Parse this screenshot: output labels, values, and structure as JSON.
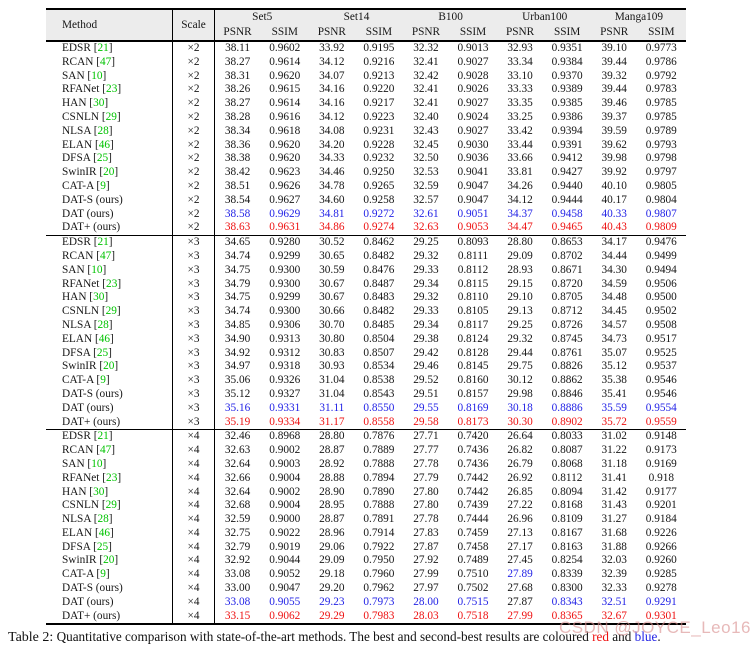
{
  "table": {
    "colors": {
      "best": "#ee1111",
      "second_best": "#2323e6",
      "citation": "#00c300",
      "header_bg": "#ececec",
      "watermark": "#d98f8f"
    },
    "columns": {
      "method": "Method",
      "scale": "Scale",
      "groups": [
        "Set5",
        "Set14",
        "B100",
        "Urban100",
        "Manga109"
      ],
      "metrics": [
        "PSNR",
        "SSIM"
      ]
    },
    "sections": [
      {
        "scale": "×2",
        "rows": [
          {
            "name": "EDSR",
            "cite": "21",
            "values": [
              "38.11",
              "0.9602",
              "33.92",
              "0.9195",
              "32.32",
              "0.9013",
              "32.93",
              "0.9351",
              "39.10",
              "0.9773"
            ]
          },
          {
            "name": "RCAN",
            "cite": "47",
            "values": [
              "38.27",
              "0.9614",
              "34.12",
              "0.9216",
              "32.41",
              "0.9027",
              "33.34",
              "0.9384",
              "39.44",
              "0.9786"
            ]
          },
          {
            "name": "SAN",
            "cite": "10",
            "values": [
              "38.31",
              "0.9620",
              "34.07",
              "0.9213",
              "32.42",
              "0.9028",
              "33.10",
              "0.9370",
              "39.32",
              "0.9792"
            ]
          },
          {
            "name": "RFANet",
            "cite": "23",
            "values": [
              "38.26",
              "0.9615",
              "34.16",
              "0.9220",
              "32.41",
              "0.9026",
              "33.33",
              "0.9389",
              "39.44",
              "0.9783"
            ]
          },
          {
            "name": "HAN",
            "cite": "30",
            "values": [
              "38.27",
              "0.9614",
              "34.16",
              "0.9217",
              "32.41",
              "0.9027",
              "33.35",
              "0.9385",
              "39.46",
              "0.9785"
            ]
          },
          {
            "name": "CSNLN",
            "cite": "29",
            "values": [
              "38.28",
              "0.9616",
              "34.12",
              "0.9223",
              "32.40",
              "0.9024",
              "33.25",
              "0.9386",
              "39.37",
              "0.9785"
            ]
          },
          {
            "name": "NLSA",
            "cite": "28",
            "values": [
              "38.34",
              "0.9618",
              "34.08",
              "0.9231",
              "32.43",
              "0.9027",
              "33.42",
              "0.9394",
              "39.59",
              "0.9789"
            ]
          },
          {
            "name": "ELAN",
            "cite": "46",
            "values": [
              "38.36",
              "0.9620",
              "34.20",
              "0.9228",
              "32.45",
              "0.9030",
              "33.44",
              "0.9391",
              "39.62",
              "0.9793"
            ]
          },
          {
            "name": "DFSA",
            "cite": "25",
            "values": [
              "38.38",
              "0.9620",
              "34.33",
              "0.9232",
              "32.50",
              "0.9036",
              "33.66",
              "0.9412",
              "39.98",
              "0.9798"
            ]
          },
          {
            "name": "SwinIR",
            "cite": "20",
            "values": [
              "38.42",
              "0.9623",
              "34.46",
              "0.9250",
              "32.53",
              "0.9041",
              "33.81",
              "0.9427",
              "39.92",
              "0.9797"
            ]
          },
          {
            "name": "CAT-A",
            "cite": "9",
            "values": [
              "38.51",
              "0.9626",
              "34.78",
              "0.9265",
              "32.59",
              "0.9047",
              "34.26",
              "0.9440",
              "40.10",
              "0.9805"
            ]
          },
          {
            "name": "DAT-S (ours)",
            "cite": null,
            "values": [
              "38.54",
              "0.9627",
              "34.60",
              "0.9258",
              "32.57",
              "0.9047",
              "34.12",
              "0.9444",
              "40.17",
              "0.9804"
            ]
          },
          {
            "name": "DAT (ours)",
            "cite": null,
            "c": "b",
            "values": [
              "38.58",
              "0.9629",
              "34.81",
              "0.9272",
              "32.61",
              "0.9051",
              "34.37",
              "0.9458",
              "40.33",
              "0.9807"
            ]
          },
          {
            "name": "DAT+ (ours)",
            "cite": null,
            "c": "r",
            "values": [
              "38.63",
              "0.9631",
              "34.86",
              "0.9274",
              "32.63",
              "0.9053",
              "34.47",
              "0.9465",
              "40.43",
              "0.9809"
            ]
          }
        ]
      },
      {
        "scale": "×3",
        "rows": [
          {
            "name": "EDSR",
            "cite": "21",
            "values": [
              "34.65",
              "0.9280",
              "30.52",
              "0.8462",
              "29.25",
              "0.8093",
              "28.80",
              "0.8653",
              "34.17",
              "0.9476"
            ]
          },
          {
            "name": "RCAN",
            "cite": "47",
            "values": [
              "34.74",
              "0.9299",
              "30.65",
              "0.8482",
              "29.32",
              "0.8111",
              "29.09",
              "0.8702",
              "34.44",
              "0.9499"
            ]
          },
          {
            "name": "SAN",
            "cite": "10",
            "values": [
              "34.75",
              "0.9300",
              "30.59",
              "0.8476",
              "29.33",
              "0.8112",
              "28.93",
              "0.8671",
              "34.30",
              "0.9494"
            ]
          },
          {
            "name": "RFANet",
            "cite": "23",
            "values": [
              "34.79",
              "0.9300",
              "30.67",
              "0.8487",
              "29.34",
              "0.8115",
              "29.15",
              "0.8720",
              "34.59",
              "0.9506"
            ]
          },
          {
            "name": "HAN",
            "cite": "30",
            "values": [
              "34.75",
              "0.9299",
              "30.67",
              "0.8483",
              "29.32",
              "0.8110",
              "29.10",
              "0.8705",
              "34.48",
              "0.9500"
            ]
          },
          {
            "name": "CSNLN",
            "cite": "29",
            "values": [
              "34.74",
              "0.9300",
              "30.66",
              "0.8482",
              "29.33",
              "0.8105",
              "29.13",
              "0.8712",
              "34.45",
              "0.9502"
            ]
          },
          {
            "name": "NLSA",
            "cite": "28",
            "values": [
              "34.85",
              "0.9306",
              "30.70",
              "0.8485",
              "29.34",
              "0.8117",
              "29.25",
              "0.8726",
              "34.57",
              "0.9508"
            ]
          },
          {
            "name": "ELAN",
            "cite": "46",
            "values": [
              "34.90",
              "0.9313",
              "30.80",
              "0.8504",
              "29.38",
              "0.8124",
              "29.32",
              "0.8745",
              "34.73",
              "0.9517"
            ]
          },
          {
            "name": "DFSA",
            "cite": "25",
            "values": [
              "34.92",
              "0.9312",
              "30.83",
              "0.8507",
              "29.42",
              "0.8128",
              "29.44",
              "0.8761",
              "35.07",
              "0.9525"
            ]
          },
          {
            "name": "SwinIR",
            "cite": "20",
            "values": [
              "34.97",
              "0.9318",
              "30.93",
              "0.8534",
              "29.46",
              "0.8145",
              "29.75",
              "0.8826",
              "35.12",
              "0.9537"
            ]
          },
          {
            "name": "CAT-A",
            "cite": "9",
            "values": [
              "35.06",
              "0.9326",
              "31.04",
              "0.8538",
              "29.52",
              "0.8160",
              "30.12",
              "0.8862",
              "35.38",
              "0.9546"
            ]
          },
          {
            "name": "DAT-S (ours)",
            "cite": null,
            "values": [
              "35.12",
              "0.9327",
              "31.04",
              "0.8543",
              "29.51",
              "0.8157",
              "29.98",
              "0.8846",
              "35.41",
              "0.9546"
            ]
          },
          {
            "name": "DAT (ours)",
            "cite": null,
            "c": "b",
            "values": [
              "35.16",
              "0.9331",
              "31.11",
              "0.8550",
              "29.55",
              "0.8169",
              "30.18",
              "0.8886",
              "35.59",
              "0.9554"
            ]
          },
          {
            "name": "DAT+ (ours)",
            "cite": null,
            "c": "r",
            "values": [
              "35.19",
              "0.9334",
              "31.17",
              "0.8558",
              "29.58",
              "0.8173",
              "30.30",
              "0.8902",
              "35.72",
              "0.9559"
            ]
          }
        ]
      },
      {
        "scale": "×4",
        "rows": [
          {
            "name": "EDSR",
            "cite": "21",
            "values": [
              "32.46",
              "0.8968",
              "28.80",
              "0.7876",
              "27.71",
              "0.7420",
              "26.64",
              "0.8033",
              "31.02",
              "0.9148"
            ]
          },
          {
            "name": "RCAN",
            "cite": "47",
            "values": [
              "32.63",
              "0.9002",
              "28.87",
              "0.7889",
              "27.77",
              "0.7436",
              "26.82",
              "0.8087",
              "31.22",
              "0.9173"
            ]
          },
          {
            "name": "SAN",
            "cite": "10",
            "values": [
              "32.64",
              "0.9003",
              "28.92",
              "0.7888",
              "27.78",
              "0.7436",
              "26.79",
              "0.8068",
              "31.18",
              "0.9169"
            ]
          },
          {
            "name": "RFANet",
            "cite": "23",
            "values": [
              "32.66",
              "0.9004",
              "28.88",
              "0.7894",
              "27.79",
              "0.7442",
              "26.92",
              "0.8112",
              "31.41",
              "0.918"
            ]
          },
          {
            "name": "HAN",
            "cite": "30",
            "values": [
              "32.64",
              "0.9002",
              "28.90",
              "0.7890",
              "27.80",
              "0.7442",
              "26.85",
              "0.8094",
              "31.42",
              "0.9177"
            ]
          },
          {
            "name": "CSNLN",
            "cite": "29",
            "values": [
              "32.68",
              "0.9004",
              "28.95",
              "0.7888",
              "27.80",
              "0.7439",
              "27.22",
              "0.8168",
              "31.43",
              "0.9201"
            ]
          },
          {
            "name": "NLSA",
            "cite": "28",
            "values": [
              "32.59",
              "0.9000",
              "28.87",
              "0.7891",
              "27.78",
              "0.7444",
              "26.96",
              "0.8109",
              "31.27",
              "0.9184"
            ]
          },
          {
            "name": "ELAN",
            "cite": "46",
            "values": [
              "32.75",
              "0.9022",
              "28.96",
              "0.7914",
              "27.83",
              "0.7459",
              "27.13",
              "0.8167",
              "31.68",
              "0.9226"
            ]
          },
          {
            "name": "DFSA",
            "cite": "25",
            "values": [
              "32.79",
              "0.9019",
              "29.06",
              "0.7922",
              "27.87",
              "0.7458",
              "27.17",
              "0.8163",
              "31.88",
              "0.9266"
            ]
          },
          {
            "name": "SwinIR",
            "cite": "20",
            "values": [
              "32.92",
              "0.9044",
              "29.09",
              "0.7950",
              "27.92",
              "0.7489",
              "27.45",
              "0.8254",
              "32.03",
              "0.9260"
            ]
          },
          {
            "name": "CAT-A",
            "cite": "9",
            "c": "kkkkkkbkkk",
            "values": [
              "33.08",
              "0.9052",
              "29.18",
              "0.7960",
              "27.99",
              "0.7510",
              "27.89",
              "0.8339",
              "32.39",
              "0.9285"
            ]
          },
          {
            "name": "DAT-S (ours)",
            "cite": null,
            "values": [
              "33.00",
              "0.9047",
              "29.20",
              "0.7962",
              "27.97",
              "0.7502",
              "27.68",
              "0.8300",
              "32.33",
              "0.9278"
            ]
          },
          {
            "name": "DAT (ours)",
            "cite": null,
            "c": "bbbbbbkbbb",
            "values": [
              "33.08",
              "0.9055",
              "29.23",
              "0.7973",
              "28.00",
              "0.7515",
              "27.87",
              "0.8343",
              "32.51",
              "0.9291"
            ]
          },
          {
            "name": "DAT+ (ours)",
            "cite": null,
            "c": "r",
            "values": [
              "33.15",
              "0.9062",
              "29.29",
              "0.7983",
              "28.03",
              "0.7518",
              "27.99",
              "0.8365",
              "32.67",
              "0.9301"
            ]
          }
        ]
      }
    ],
    "caption": {
      "prefix": "Table 2:",
      "body": " Quantitative comparison with state-of-the-art methods. The best and second-best results are coloured ",
      "red_word": "red",
      "mid": " and ",
      "blue_word": "blue",
      "end": "."
    },
    "watermark": "CSDN @JOYCE_Leo16"
  }
}
